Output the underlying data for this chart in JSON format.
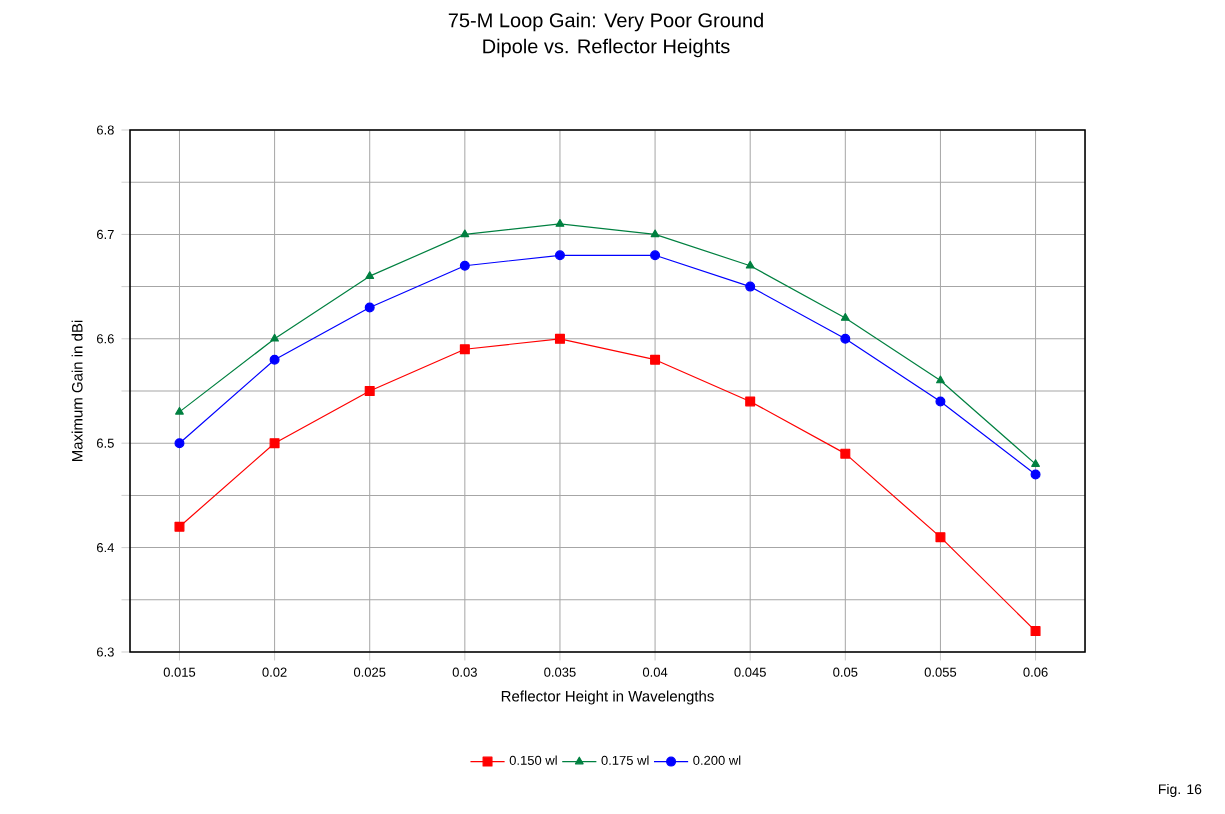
{
  "chart_data": {
    "type": "line",
    "title": "75-M Loop Gain: Very Poor Ground",
    "subtitle": "Dipole vs. Reflector Heights",
    "xlabel": "Reflector Height in Wavelengths",
    "ylabel": "Maximum Gain in dBi",
    "categories": [
      "0.015",
      "0.02",
      "0.025",
      "0.03",
      "0.035",
      "0.04",
      "0.045",
      "0.05",
      "0.055",
      "0.06"
    ],
    "series": [
      {
        "name": "0.150 wl",
        "color": "#ff0000",
        "marker": "square",
        "values": [
          6.42,
          6.5,
          6.55,
          6.59,
          6.6,
          6.58,
          6.54,
          6.49,
          6.41,
          6.32
        ]
      },
      {
        "name": "0.175 wl",
        "color": "#008040",
        "marker": "triangle",
        "values": [
          6.53,
          6.6,
          6.66,
          6.7,
          6.71,
          6.7,
          6.67,
          6.62,
          6.56,
          6.48
        ]
      },
      {
        "name": "0.200 wl",
        "color": "#0000ff",
        "marker": "circle",
        "values": [
          6.5,
          6.58,
          6.63,
          6.67,
          6.68,
          6.68,
          6.65,
          6.6,
          6.54,
          6.47
        ]
      }
    ],
    "ylim": [
      6.3,
      6.8
    ],
    "yticks": [
      6.3,
      {
        "value": 6.35,
        "label": null
      },
      6.4,
      {
        "value": 6.45,
        "label": null
      },
      6.5,
      {
        "value": 6.55,
        "label": null
      },
      6.6,
      {
        "value": 6.65,
        "label": null
      },
      6.7,
      {
        "value": 6.75,
        "label": null
      },
      6.8
    ],
    "grid": true,
    "legend": "bottom",
    "line_style": "solid",
    "annotations": [
      "Fig. 16"
    ]
  }
}
